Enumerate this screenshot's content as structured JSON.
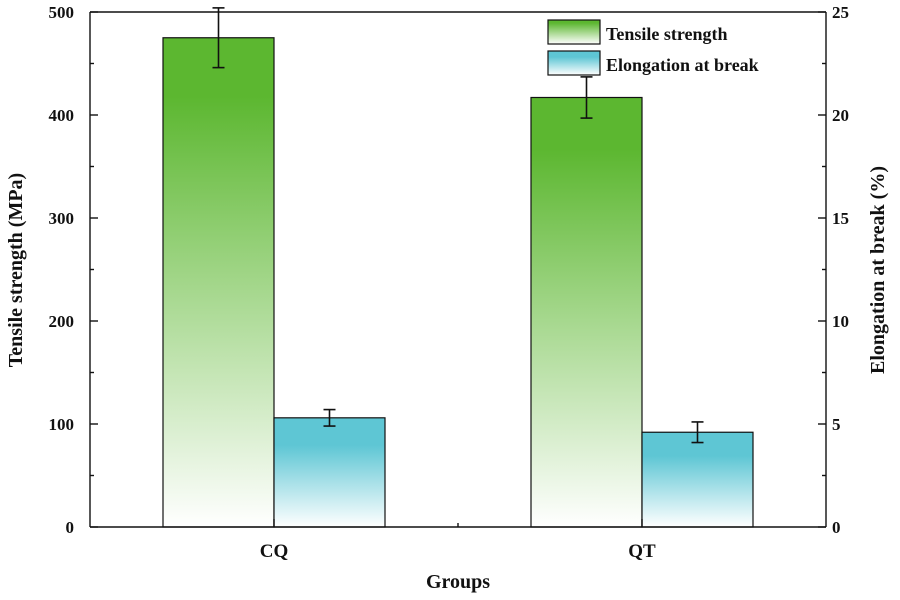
{
  "chart_data": {
    "type": "bar",
    "title": "",
    "xlabel": "Groups",
    "ylabel_left": "Tensile strength (MPa)",
    "ylabel_right": "Elongation at break (%)",
    "categories": [
      "CQ",
      "QT"
    ],
    "ylim_left": [
      0,
      500
    ],
    "yticks_left": [
      0,
      100,
      200,
      300,
      400,
      500
    ],
    "ylim_right": [
      0,
      25
    ],
    "yticks_right": [
      0,
      5,
      10,
      15,
      20,
      25
    ],
    "legend_position": "top-right",
    "grid": false,
    "series": [
      {
        "name": "Tensile strength",
        "axis": "left",
        "values": [
          475,
          417
        ],
        "errors": [
          29,
          20
        ],
        "color_top": "#5cb730",
        "color_bottom": "#ffffff"
      },
      {
        "name": "Elongation at break",
        "axis": "right",
        "values": [
          5.3,
          4.6
        ],
        "errors": [
          0.4,
          0.5
        ],
        "color_top": "#5ec6d4",
        "color_bottom": "#ffffff"
      }
    ]
  }
}
